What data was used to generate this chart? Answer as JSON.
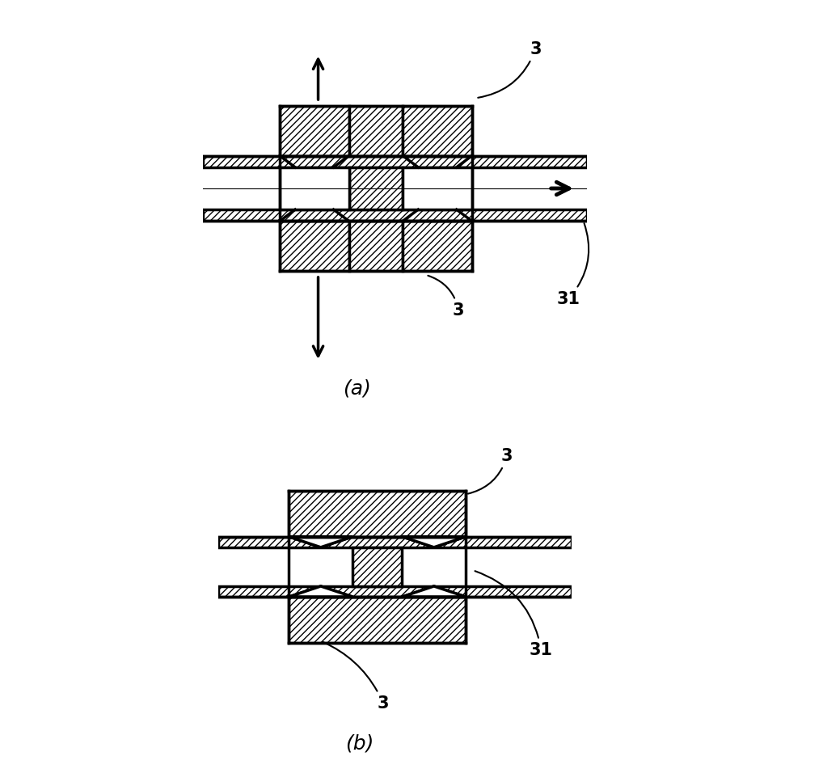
{
  "fig_width": 10.18,
  "fig_height": 9.51,
  "bg_color": "#ffffff",
  "label_a": "(a)",
  "label_b": "(b)",
  "label_3": "3",
  "label_31": "31",
  "hatch": "////",
  "lw": 2.0
}
